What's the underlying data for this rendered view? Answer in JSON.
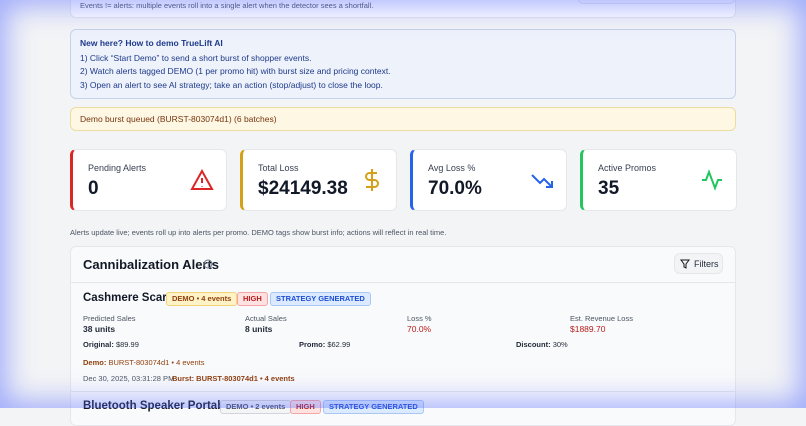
{
  "top_note": "Events != alerts: multiple events roll into a single alert when the detector sees a shortfall.",
  "demo_help": {
    "title": "New here? How to demo TrueLift AI",
    "steps": [
      "1) Click “Start Demo” to send a short burst of shopper events.",
      "2) Watch alerts tagged DEMO (1 per promo hit) with burst size and pricing context.",
      "3) Open an alert to see AI strategy; take an action (stop/adjust) to close the loop."
    ]
  },
  "status": "Demo burst queued (BURST-803074d1) (6 batches)",
  "stats": [
    {
      "label": "Pending Alerts",
      "value": "0"
    },
    {
      "label": "Total Loss",
      "value": "$24149.38"
    },
    {
      "label": "Avg Loss %",
      "value": "70.0%"
    },
    {
      "label": "Active Promos",
      "value": "35"
    }
  ],
  "live_note": "Alerts update live; events roll up into alerts per promo. DEMO tags show burst info; actions will reflect in real time.",
  "alerts_panel": {
    "title": "Cannibalization Alerts",
    "filter_button": "Filters",
    "alerts": [
      {
        "name": "Cashmere Scarf",
        "badges": [
          "DEMO • 4 events",
          "HIGH",
          "STRATEGY GENERATED"
        ],
        "metrics": [
          {
            "label": "Predicted Sales",
            "value": "38 units"
          },
          {
            "label": "Actual Sales",
            "value": "8 units"
          },
          {
            "label": "Loss %",
            "value": "70.0%"
          },
          {
            "label": "Est. Revenue Loss",
            "value": "$1889.70"
          }
        ],
        "pricing": [
          {
            "label": "Original:",
            "value": "$89.99"
          },
          {
            "label": "Promo:",
            "value": "$62.99"
          },
          {
            "label": "Discount:",
            "value": "30%"
          }
        ],
        "demo": {
          "label": "Demo:",
          "value": "BURST-803074d1 • 4 events"
        },
        "timestamp": "Dec 30, 2025, 03:31:28 PM",
        "burst": "Burst: BURST-803074d1 • 4 events"
      },
      {
        "name": "Bluetooth Speaker Portable",
        "badges": [
          "DEMO • 2 events",
          "HIGH",
          "STRATEGY GENERATED"
        ]
      }
    ]
  }
}
